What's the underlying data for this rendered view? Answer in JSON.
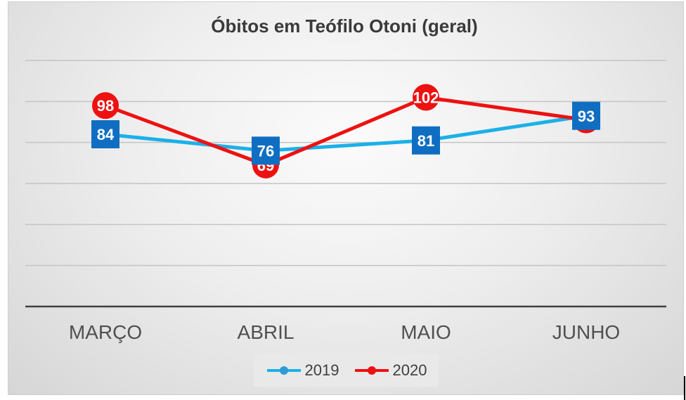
{
  "chart_data": {
    "type": "line",
    "title": "Óbitos em Teófilo Otoni (geral)",
    "categories": [
      "MARÇO",
      "ABRIL",
      "MAIO",
      "JUNHO"
    ],
    "series": [
      {
        "name": "2019",
        "values": [
          84,
          76,
          81,
          93
        ],
        "color": "#1cb0e8",
        "marker": "square",
        "label_bg": "#0f6ec2"
      },
      {
        "name": "2020",
        "values": [
          98,
          69,
          102,
          91
        ],
        "color": "#ee1111",
        "marker": "circle",
        "label_bg": "#ee1111"
      }
    ],
    "ylim": [
      0,
      120
    ],
    "grid": true,
    "legend": "bottom",
    "xlabel": "",
    "ylabel": ""
  }
}
